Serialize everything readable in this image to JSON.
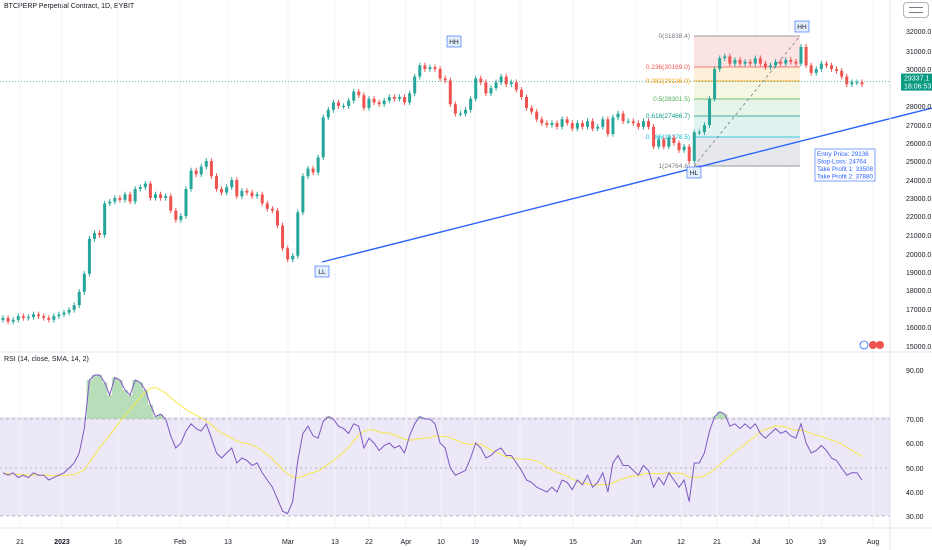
{
  "header": {
    "symbol_title": "BTCPERP Perpetual Contract, 1D, BYBIT"
  },
  "price_axis": {
    "ticks": [
      "32000.0",
      "31000.0",
      "30000.0",
      "28000.0",
      "27000.0",
      "26000.0",
      "25000.0",
      "24000.0",
      "23000.0",
      "22000.0",
      "21000.0",
      "20000.0",
      "19000.0",
      "18000.0",
      "17000.0",
      "16000.0",
      "15000.0"
    ],
    "last_price": "29337.1",
    "countdown": "18:06:53"
  },
  "time_axis": {
    "ticks": [
      "21",
      "2023",
      "16",
      "Feb",
      "13",
      "Mar",
      "13",
      "22",
      "Apr",
      "10",
      "19",
      "May",
      "15",
      "Jun",
      "12",
      "21",
      "Jul",
      "10",
      "19",
      "Aug"
    ]
  },
  "annotations": {
    "lows_highs": [
      "HH",
      "HH",
      "LL",
      "HL"
    ],
    "fib_levels": [
      "0(31838.4)",
      "0.236(30169.0)",
      "0.382(29136.0)",
      "0.5(28301.5)",
      "0.618(27466.7)",
      "0.786(26278.5)",
      "1(24764.6)"
    ],
    "trade_box": [
      "Entry Price: 29136",
      "Stop-Loss: 24764",
      "Take Profit 1: 33508",
      "Take Profit 2: 37880"
    ]
  },
  "rsi": {
    "title": "RSI (14, close, SMA, 14, 2)",
    "ticks": [
      "90.00",
      "70.00",
      "60.00",
      "50.00",
      "40.00",
      "30.00"
    ],
    "last_value": "45.00"
  },
  "colors": {
    "up": "#26a69a",
    "down": "#ef5350",
    "trendline": "#2962ff",
    "rsi": "#7e57c2",
    "rsi_ma": "#f6e94a",
    "last_price": "#089981"
  },
  "chart_data": {
    "type": "candlestick",
    "interval": "1D",
    "ylim": [
      15000,
      32000
    ],
    "rsi_ylim": [
      28,
      92
    ],
    "close": [
      16500,
      16300,
      16400,
      16600,
      16500,
      16550,
      16700,
      16600,
      16500,
      16400,
      16600,
      16700,
      16800,
      16950,
      17200,
      17900,
      18900,
      20800,
      21100,
      21000,
      22700,
      22800,
      23000,
      22900,
      23200,
      22800,
      23500,
      23600,
      23800,
      23000,
      23200,
      23000,
      23100,
      22300,
      21800,
      22000,
      23500,
      24500,
      24300,
      24700,
      25000,
      24200,
      23500,
      23300,
      23600,
      24000,
      23100,
      23400,
      23300,
      23100,
      23200,
      22700,
      22400,
      22300,
      21500,
      20300,
      19700,
      19900,
      22200,
      24200,
      24600,
      24400,
      25200,
      27400,
      27800,
      28200,
      28000,
      28000,
      28300,
      28800,
      28600,
      27900,
      28400,
      28200,
      28100,
      28300,
      28500,
      28400,
      28500,
      28200,
      28700,
      29600,
      30200,
      30000,
      30100,
      30000,
      29500,
      29400,
      28100,
      27600,
      27600,
      27800,
      28400,
      29500,
      29300,
      28700,
      29000,
      29300,
      29600,
      29200,
      29300,
      28900,
      28500,
      27900,
      27700,
      27300,
      27100,
      27000,
      27100,
      26900,
      27300,
      27100,
      26800,
      27100,
      26900,
      27200,
      26800,
      26900,
      27300,
      26500,
      27400,
      27600,
      27200,
      27200,
      27100,
      26900,
      27200,
      26900,
      25800,
      26200,
      25800,
      26300,
      26000,
      25600,
      25800,
      25000,
      26600,
      26600,
      27000,
      28400,
      30000,
      30600,
      30700,
      30300,
      30500,
      30300,
      30400,
      30300,
      30600,
      30300,
      30100,
      30200,
      30400,
      30300,
      30500,
      30400,
      30300,
      31200,
      30200,
      29800,
      30000,
      30300,
      30200,
      30000,
      29900,
      29600,
      29200,
      29300,
      29300,
      29200
    ],
    "rsi": [
      48,
      47,
      48,
      46,
      47,
      46,
      48,
      47,
      47,
      45,
      46,
      47,
      48,
      50,
      52,
      56,
      66,
      86,
      88,
      88,
      85,
      80,
      87,
      86,
      82,
      80,
      86,
      85,
      82,
      76,
      71,
      72,
      70,
      63,
      58,
      60,
      65,
      68,
      66,
      65,
      68,
      62,
      56,
      54,
      56,
      58,
      52,
      54,
      53,
      51,
      52,
      48,
      45,
      42,
      37,
      32,
      31,
      36,
      53,
      64,
      67,
      63,
      62,
      69,
      71,
      70,
      67,
      66,
      64,
      68,
      67,
      58,
      62,
      60,
      57,
      59,
      60,
      58,
      59,
      56,
      63,
      68,
      71,
      70,
      70,
      68,
      60,
      58,
      50,
      47,
      48,
      49,
      54,
      60,
      58,
      54,
      55,
      57,
      58,
      55,
      55,
      52,
      49,
      45,
      44,
      42,
      41,
      40,
      42,
      40,
      45,
      44,
      41,
      45,
      43,
      47,
      42,
      44,
      48,
      40,
      52,
      55,
      51,
      51,
      49,
      47,
      51,
      49,
      42,
      46,
      43,
      48,
      45,
      42,
      45,
      36,
      52,
      52,
      56,
      65,
      71,
      73,
      72,
      67,
      68,
      66,
      68,
      66,
      68,
      64,
      62,
      64,
      66,
      64,
      65,
      63,
      62,
      68,
      60,
      56,
      57,
      59,
      57,
      54,
      53,
      50,
      47,
      48,
      48,
      45
    ]
  }
}
